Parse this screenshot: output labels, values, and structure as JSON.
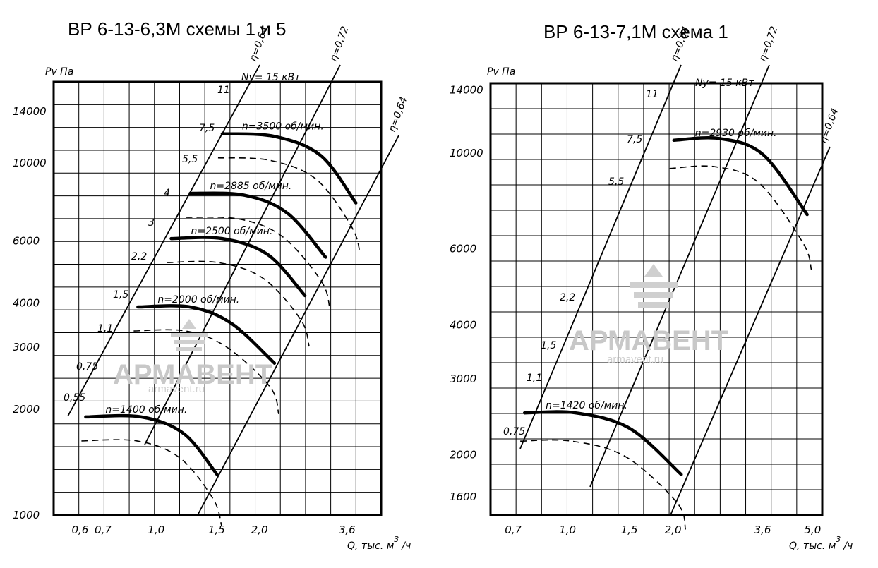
{
  "chart_data": [
    {
      "type": "line",
      "title": "ВР 6-13-6,3М  схемы 1 и 5",
      "ylabel": "Pv Па",
      "xlabel": "Q, тыс. м³/ч",
      "xlabel_main": "Q, тыс. м",
      "xlabel_sup": "3",
      "xlabel_tail": "/ч",
      "x_ticks": [
        "0,6",
        "0,7",
        "1,0",
        "1,5",
        "2,0",
        "3,6"
      ],
      "y_ticks": [
        "1000",
        "2000",
        "3000",
        "4000",
        "6000",
        "10000",
        "14000"
      ],
      "grid": true,
      "power_title": "Ny= 15 кВт",
      "power_labels": [
        "11",
        "7,5",
        "5,5",
        "4",
        "3",
        "2,2",
        "1,5",
        "1,1",
        "0,75",
        "0,55"
      ],
      "eta_labels": [
        "η=0,64",
        "η=0,72",
        "η=0,64"
      ],
      "series": [
        {
          "name": "n=3500 об/мин.",
          "q": [
            1.55,
            2.2,
            3.0,
            3.8
          ],
          "p": [
            12100,
            11900,
            10500,
            7700
          ]
        },
        {
          "name": "n=2885 об/мин.",
          "q": [
            1.25,
            1.8,
            2.4,
            3.1
          ],
          "p": [
            8200,
            8100,
            7200,
            5400
          ]
        },
        {
          "name": "n=2500 об/мин.",
          "q": [
            1.1,
            1.55,
            2.1,
            2.7
          ],
          "p": [
            6100,
            6100,
            5500,
            4200
          ]
        },
        {
          "name": "n=2000 об/мин.",
          "q": [
            0.88,
            1.25,
            1.65,
            2.2
          ],
          "p": [
            3900,
            3900,
            3500,
            2700
          ]
        },
        {
          "name": "n=1400 об/мин.",
          "q": [
            0.62,
            0.9,
            1.2,
            1.5
          ],
          "p": [
            1900,
            1900,
            1700,
            1300
          ]
        }
      ]
    },
    {
      "type": "line",
      "title": "ВР 6-13-7,1М  схема 1",
      "ylabel": "Pv Па",
      "xlabel": "Q, тыс. м³/ч",
      "xlabel_main": "Q, тыс. м",
      "xlabel_sup": "3",
      "xlabel_tail": "/ч",
      "x_ticks": [
        "0,7",
        "1,0",
        "1,5",
        "2,0",
        "3,6",
        "5,0"
      ],
      "y_ticks": [
        "1600",
        "2000",
        "3000",
        "4000",
        "6000",
        "10000",
        "14000"
      ],
      "grid": true,
      "power_title": "Ny= 15 кВт",
      "power_labels": [
        "11",
        "7,5",
        "5,5",
        "2,2",
        "1,5",
        "1,1",
        "0,75"
      ],
      "eta_labels": [
        "η=0,64",
        "η=0,72",
        "η=0,64"
      ],
      "series": [
        {
          "name": "n=2930 об/мин.",
          "q": [
            2.0,
            2.7,
            3.6,
            4.8
          ],
          "p": [
            10700,
            10800,
            9900,
            7200
          ]
        },
        {
          "name": "n=1420 об/мин.",
          "q": [
            0.75,
            1.05,
            1.5,
            2.1
          ],
          "p": [
            2500,
            2500,
            2300,
            1800
          ]
        }
      ]
    }
  ],
  "watermark": {
    "brand": "АРМАВЕНТ",
    "site": "armavent.ru"
  }
}
